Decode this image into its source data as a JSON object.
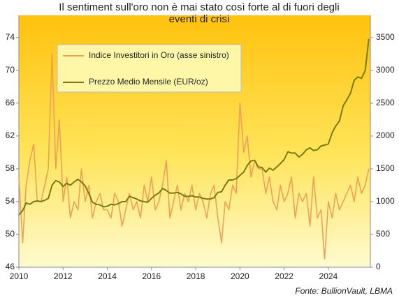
{
  "chart_data": {
    "type": "line",
    "title": [
      "Il sentiment sull'oro non è mai stato così forte al di fuori degli",
      "eventi di crisi"
    ],
    "source": "Fonte: BullionVault, LBMA",
    "x": [
      2010,
      2010.17,
      2010.33,
      2010.5,
      2010.67,
      2010.83,
      2011,
      2011.17,
      2011.33,
      2011.5,
      2011.67,
      2011.83,
      2012,
      2012.17,
      2012.33,
      2012.5,
      2012.67,
      2012.83,
      2013,
      2013.17,
      2013.33,
      2013.5,
      2013.67,
      2013.83,
      2014,
      2014.17,
      2014.33,
      2014.5,
      2014.67,
      2014.83,
      2015,
      2015.17,
      2015.33,
      2015.5,
      2015.67,
      2015.83,
      2016,
      2016.17,
      2016.33,
      2016.5,
      2016.67,
      2016.83,
      2017,
      2017.17,
      2017.33,
      2017.5,
      2017.67,
      2017.83,
      2018,
      2018.17,
      2018.33,
      2018.5,
      2018.67,
      2018.83,
      2019,
      2019.17,
      2019.33,
      2019.5,
      2019.67,
      2019.83,
      2020,
      2020.17,
      2020.33,
      2020.5,
      2020.67,
      2020.83,
      2021,
      2021.17,
      2021.33,
      2021.5,
      2021.67,
      2021.83,
      2022,
      2022.17,
      2022.33,
      2022.5,
      2022.67,
      2022.83,
      2023,
      2023.17,
      2023.33,
      2023.5,
      2023.67,
      2023.83,
      2024,
      2024.17,
      2024.33,
      2024.5,
      2024.67,
      2024.83,
      2025,
      2025.17,
      2025.33,
      2025.5,
      2025.67,
      2025.83
    ],
    "series": [
      {
        "name": "Indice Investitori in Oro (asse sinistro)",
        "color": "#f0a055",
        "values": [
          57,
          49,
          56,
          59,
          61,
          54,
          54,
          56,
          58,
          72,
          58,
          64,
          54,
          57,
          52,
          54,
          53,
          58,
          54,
          56,
          52,
          54,
          55,
          53,
          53,
          52,
          55,
          54,
          51,
          53,
          55,
          53,
          54,
          52,
          56,
          54,
          57,
          53,
          54,
          56,
          59,
          52,
          54,
          56,
          53,
          55,
          54,
          56,
          53,
          55,
          54,
          52,
          55,
          56,
          52,
          49,
          54,
          53,
          56,
          55,
          66,
          60,
          62,
          57,
          59,
          58,
          58,
          55,
          57,
          54,
          53,
          56,
          54,
          55,
          57,
          52,
          55,
          54,
          55,
          51,
          57,
          52,
          53,
          47,
          54,
          52,
          55,
          53,
          54,
          55,
          56,
          54,
          57,
          55,
          56,
          58
        ]
      },
      {
        "name": "Prezzo Medio Mensile (EUR/oz)",
        "color": "#7a7a10",
        "axis": "y2",
        "values": [
          800,
          860,
          980,
          960,
          1000,
          1010,
          1000,
          1020,
          1050,
          1250,
          1320,
          1300,
          1230,
          1280,
          1250,
          1300,
          1340,
          1300,
          1240,
          1120,
          990,
          960,
          950,
          920,
          930,
          960,
          950,
          970,
          1000,
          1000,
          1080,
          1060,
          1040,
          1010,
          1000,
          990,
          1050,
          1100,
          1130,
          1200,
          1170,
          1130,
          1130,
          1140,
          1120,
          1080,
          1080,
          1090,
          1070,
          1070,
          1050,
          1040,
          1040,
          1060,
          1140,
          1150,
          1250,
          1330,
          1330,
          1350,
          1400,
          1450,
          1550,
          1620,
          1630,
          1530,
          1520,
          1450,
          1510,
          1480,
          1530,
          1580,
          1640,
          1760,
          1740,
          1740,
          1680,
          1720,
          1790,
          1820,
          1780,
          1790,
          1850,
          1860,
          1880,
          2050,
          2150,
          2230,
          2460,
          2550,
          2650,
          2850,
          2900,
          2880,
          3000,
          3480
        ]
      }
    ],
    "xlim": [
      2010,
      2025.9
    ],
    "xticks": [
      2010,
      2012,
      2014,
      2016,
      2018,
      2020,
      2022,
      2024
    ],
    "ylim": [
      46,
      76.7
    ],
    "yticks": [
      46,
      50,
      54,
      58,
      62,
      66,
      70,
      74
    ],
    "y2lim": [
      0,
      3840
    ],
    "y2ticks": [
      0,
      500,
      1000,
      1500,
      2000,
      2500,
      3000,
      3500
    ],
    "grid": false
  }
}
